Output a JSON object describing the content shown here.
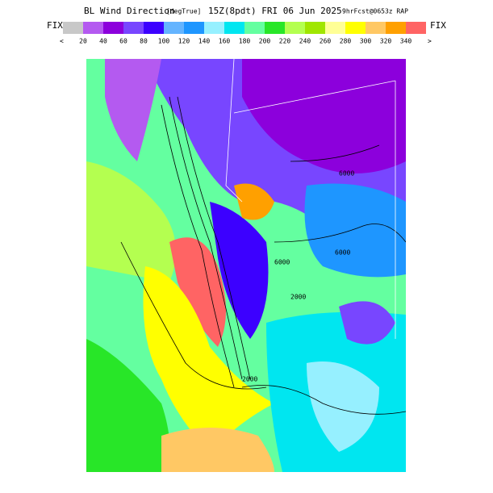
{
  "header": {
    "title": "BL Wind Direction",
    "units": "[degTrue]",
    "valid": "15Z(8pdt) FRI 06 Jun 2025",
    "run": "9hrFcst@0653z RAP"
  },
  "colorbar": {
    "fix": "FIX",
    "left": "<",
    "right": ">",
    "colors": [
      "#c8c8c8",
      "#b45af0",
      "#8c00dc",
      "#7846ff",
      "#3c00ff",
      "#64b4ff",
      "#1e96ff",
      "#96f0ff",
      "#00e6f0",
      "#64ffa0",
      "#28e628",
      "#b4ff50",
      "#a0e600",
      "#ffff96",
      "#ffff00",
      "#ffc864",
      "#ffa000",
      "#ff6464"
    ],
    "labels": [
      "20",
      "40",
      "60",
      "80",
      "100",
      "120",
      "140",
      "160",
      "180",
      "200",
      "220",
      "240",
      "260",
      "280",
      "300",
      "320",
      "340"
    ]
  },
  "contour_labels": [
    "6000",
    "6000",
    "6000",
    "2000",
    "2000"
  ]
}
